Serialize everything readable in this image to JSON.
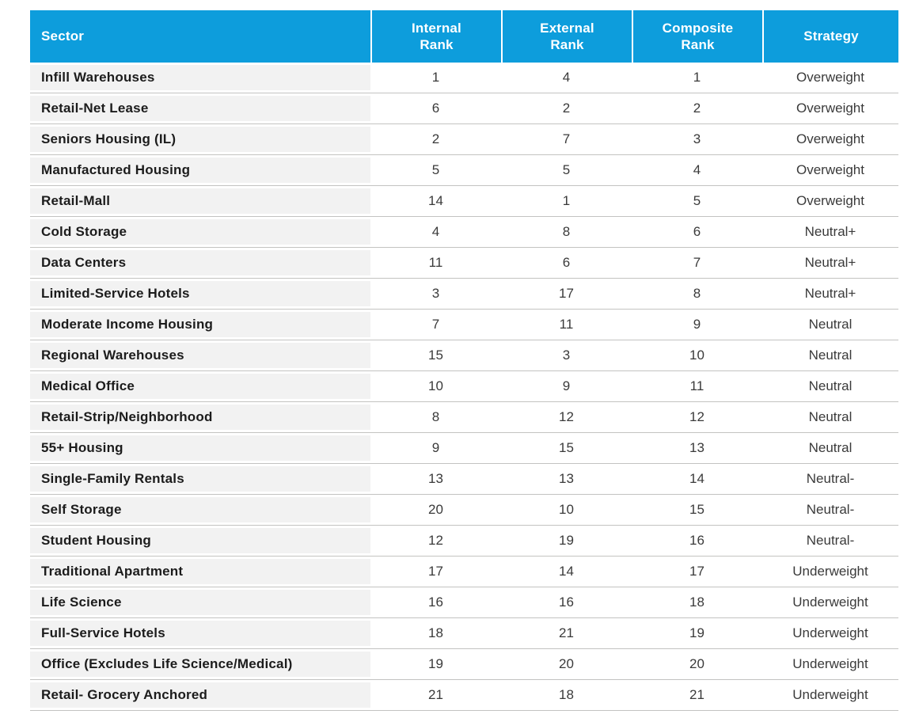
{
  "chart_data": {
    "type": "table",
    "columns": [
      "Sector",
      "Internal Rank",
      "External Rank",
      "Composite Rank",
      "Strategy"
    ],
    "rows": [
      {
        "sector": "Infill Warehouses",
        "internal": "1",
        "external": "4",
        "composite": "1",
        "strategy": "Overweight"
      },
      {
        "sector": "Retail-Net Lease",
        "internal": "6",
        "external": "2",
        "composite": "2",
        "strategy": "Overweight"
      },
      {
        "sector": "Seniors Housing (IL)",
        "internal": "2",
        "external": "7",
        "composite": "3",
        "strategy": "Overweight"
      },
      {
        "sector": "Manufactured Housing",
        "internal": "5",
        "external": "5",
        "composite": "4",
        "strategy": "Overweight"
      },
      {
        "sector": "Retail-Mall",
        "internal": "14",
        "external": "1",
        "composite": "5",
        "strategy": "Overweight"
      },
      {
        "sector": "Cold Storage",
        "internal": "4",
        "external": "8",
        "composite": "6",
        "strategy": "Neutral+"
      },
      {
        "sector": "Data Centers",
        "internal": "11",
        "external": "6",
        "composite": "7",
        "strategy": "Neutral+"
      },
      {
        "sector": "Limited-Service Hotels",
        "internal": "3",
        "external": "17",
        "composite": "8",
        "strategy": "Neutral+"
      },
      {
        "sector": "Moderate Income Housing",
        "internal": "7",
        "external": "11",
        "composite": "9",
        "strategy": "Neutral"
      },
      {
        "sector": "Regional Warehouses",
        "internal": "15",
        "external": "3",
        "composite": "10",
        "strategy": "Neutral"
      },
      {
        "sector": "Medical Office",
        "internal": "10",
        "external": "9",
        "composite": "11",
        "strategy": "Neutral"
      },
      {
        "sector": "Retail-Strip/Neighborhood",
        "internal": "8",
        "external": "12",
        "composite": "12",
        "strategy": "Neutral"
      },
      {
        "sector": "55+ Housing",
        "internal": "9",
        "external": "15",
        "composite": "13",
        "strategy": "Neutral"
      },
      {
        "sector": "Single-Family Rentals",
        "internal": "13",
        "external": "13",
        "composite": "14",
        "strategy": "Neutral-"
      },
      {
        "sector": "Self Storage",
        "internal": "20",
        "external": "10",
        "composite": "15",
        "strategy": "Neutral-"
      },
      {
        "sector": "Student Housing",
        "internal": "12",
        "external": "19",
        "composite": "16",
        "strategy": "Neutral-"
      },
      {
        "sector": "Traditional Apartment",
        "internal": "17",
        "external": "14",
        "composite": "17",
        "strategy": "Underweight"
      },
      {
        "sector": "Life Science",
        "internal": "16",
        "external": "16",
        "composite": "18",
        "strategy": "Underweight"
      },
      {
        "sector": "Full-Service Hotels",
        "internal": "18",
        "external": "21",
        "composite": "19",
        "strategy": "Underweight"
      },
      {
        "sector": "Office (Excludes Life Science/Medical)",
        "internal": "19",
        "external": "20",
        "composite": "20",
        "strategy": "Underweight"
      },
      {
        "sector": "Retail- Grocery Anchored",
        "internal": "21",
        "external": "18",
        "composite": "21",
        "strategy": "Underweight"
      }
    ]
  },
  "colors": {
    "header_bg": "#0d9ddc",
    "header_text": "#ffffff",
    "sector_cell_bg": "#f2f2f2",
    "row_divider": "#c3c3c1",
    "body_text": "#2b2b2b"
  }
}
